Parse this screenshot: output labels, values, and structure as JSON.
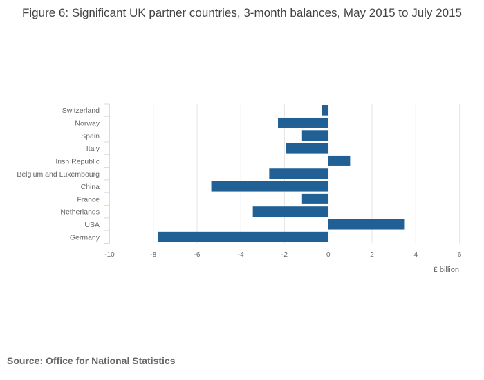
{
  "chart_data": {
    "type": "bar",
    "orientation": "horizontal",
    "title": "Figure 6: Significant UK partner countries, 3-month balances, May 2015 to July 2015",
    "xlabel": "£ billion",
    "ylabel": "",
    "xlim": [
      -10,
      6
    ],
    "x_ticks": [
      "-10",
      "-8",
      "-6",
      "-4",
      "-2",
      "0",
      "2",
      "4",
      "6"
    ],
    "categories": [
      "Switzerland",
      "Norway",
      "Spain",
      "Italy",
      "Irish Republic",
      "Belgium and Luxembourg",
      "China",
      "France",
      "Netherlands",
      "USA",
      "Germany"
    ],
    "values": [
      -0.3,
      -2.3,
      -1.2,
      -1.95,
      1.0,
      -2.7,
      -5.35,
      -1.2,
      -3.45,
      3.5,
      -7.8
    ],
    "grid": true,
    "bar_color": "#206095",
    "source": "Source: Office for National Statistics"
  }
}
